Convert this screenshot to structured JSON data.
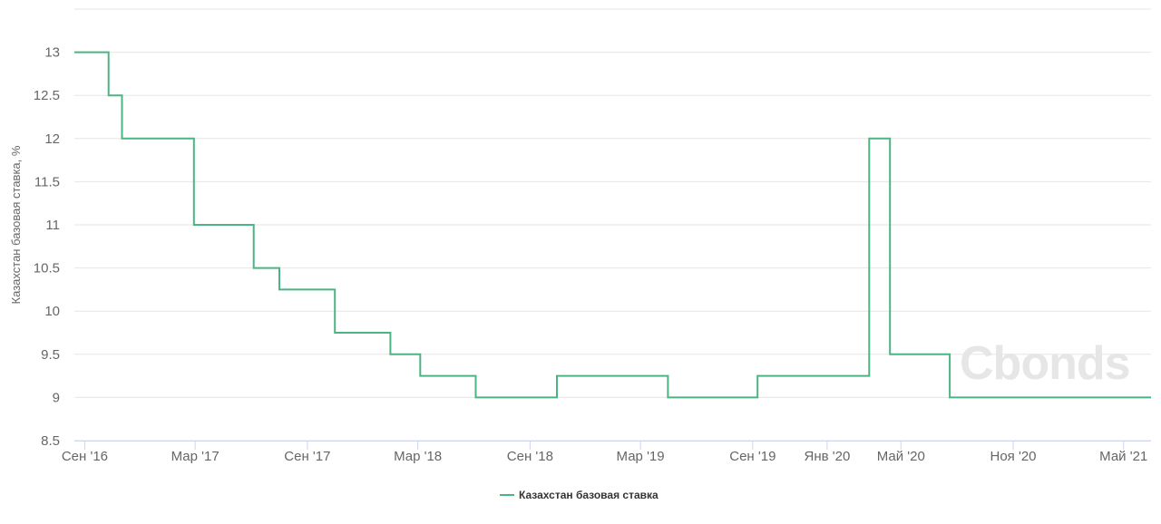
{
  "watermark": "Cbonds",
  "chart_data": {
    "type": "line",
    "step": true,
    "ylabel": "Казахстан базовая ставка, %",
    "ylim": [
      8.5,
      13.5
    ],
    "yticks": [
      "8.5",
      "9",
      "9.5",
      "10",
      "10.5",
      "11",
      "11.5",
      "12",
      "12.5",
      "13"
    ],
    "xlim": [
      "2016-08-15",
      "2021-06-15"
    ],
    "xticks": [
      {
        "date": "2016-09-01",
        "label": "Сен '16"
      },
      {
        "date": "2017-03-01",
        "label": "Мар '17"
      },
      {
        "date": "2017-09-01",
        "label": "Сен '17"
      },
      {
        "date": "2018-03-01",
        "label": "Мар '18"
      },
      {
        "date": "2018-09-01",
        "label": "Сен '18"
      },
      {
        "date": "2019-03-01",
        "label": "Мар '19"
      },
      {
        "date": "2019-09-01",
        "label": "Сен '19"
      },
      {
        "date": "2020-01-01",
        "label": "Янв '20"
      },
      {
        "date": "2020-05-01",
        "label": "Май '20"
      },
      {
        "date": "2020-11-01",
        "label": "Ноя '20"
      },
      {
        "date": "2021-05-01",
        "label": "Май '21"
      }
    ],
    "grid": true,
    "legend_position": "bottom-center",
    "colors": {
      "line": "#4cb482",
      "grid": "#e6e6e6",
      "axis": "#ccd6eb"
    },
    "series": [
      {
        "name": "Казахстан базовая ставка",
        "points": [
          {
            "x": "2016-08-15",
            "y": 13
          },
          {
            "x": "2016-10-10",
            "y": 12.5
          },
          {
            "x": "2016-11-01",
            "y": 12
          },
          {
            "x": "2017-02-27",
            "y": 11
          },
          {
            "x": "2017-06-05",
            "y": 10.5
          },
          {
            "x": "2017-07-17",
            "y": 10.25
          },
          {
            "x": "2017-10-16",
            "y": 9.75
          },
          {
            "x": "2018-01-15",
            "y": 9.5
          },
          {
            "x": "2018-03-05",
            "y": 9.25
          },
          {
            "x": "2018-06-04",
            "y": 9
          },
          {
            "x": "2018-10-15",
            "y": 9.25
          },
          {
            "x": "2019-04-15",
            "y": 9
          },
          {
            "x": "2019-09-09",
            "y": 9.25
          },
          {
            "x": "2020-03-10",
            "y": 12
          },
          {
            "x": "2020-04-13",
            "y": 9.5
          },
          {
            "x": "2020-07-20",
            "y": 9
          },
          {
            "x": "2021-06-15",
            "y": 9
          }
        ]
      }
    ]
  }
}
